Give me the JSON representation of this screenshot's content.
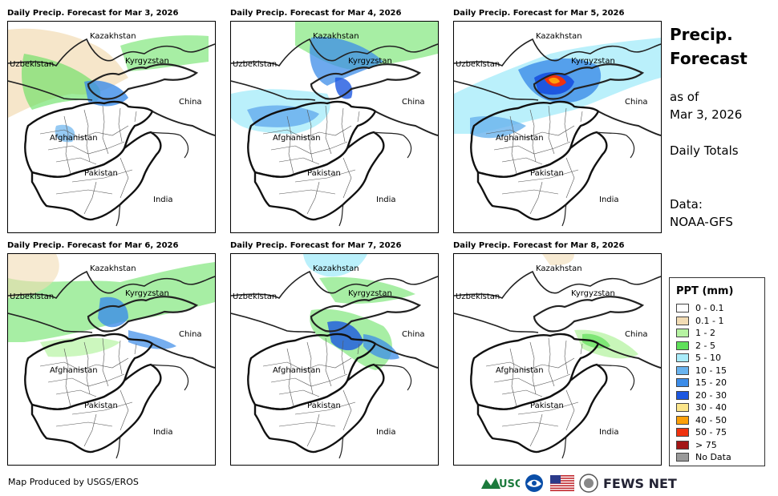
{
  "panels": [
    {
      "title": "Daily Precip. Forecast for Mar 3, 2026"
    },
    {
      "title": "Daily Precip. Forecast for Mar 4, 2026"
    },
    {
      "title": "Daily Precip. Forecast for Mar 5, 2026"
    },
    {
      "title": "Daily Precip. Forecast for Mar 6, 2026"
    },
    {
      "title": "Daily Precip. Forecast for Mar 7, 2026"
    },
    {
      "title": "Daily Precip. Forecast for Mar 8, 2026"
    }
  ],
  "map_labels": {
    "kazakhstan": "Kazakhstan",
    "uzbekistan": "Uzbekistan",
    "kyrgyzstan": "Kyrgyzstan",
    "china": "China",
    "afghanistan": "Afghanistan",
    "pakistan": "Pakistan",
    "india": "India"
  },
  "side": {
    "title_line1": "Precip.",
    "title_line2": "Forecast",
    "asof": "as of",
    "date": "Mar 3, 2026",
    "totals": "Daily Totals",
    "data_label": "Data:",
    "data_source": "NOAA-GFS"
  },
  "legend": {
    "title": "PPT (mm)",
    "items": [
      {
        "label": "0 - 0.1",
        "color": "#ffffff"
      },
      {
        "label": "0.1 - 1",
        "color": "#f2dcb4"
      },
      {
        "label": "1 - 2",
        "color": "#b6f3a2"
      },
      {
        "label": "2 - 5",
        "color": "#5fe05a"
      },
      {
        "label": "5 - 10",
        "color": "#a9ecfa"
      },
      {
        "label": "10 - 15",
        "color": "#69b3ee"
      },
      {
        "label": "15 - 20",
        "color": "#3c8ce8"
      },
      {
        "label": "20 - 30",
        "color": "#1d57e0"
      },
      {
        "label": "30 - 40",
        "color": "#fbe58a"
      },
      {
        "label": "40 - 50",
        "color": "#fca00a"
      },
      {
        "label": "50 - 75",
        "color": "#f0320e"
      },
      {
        "label": "> 75",
        "color": "#a31616"
      },
      {
        "label": "No Data",
        "color": "#999999"
      }
    ]
  },
  "footer": {
    "credit": "Map Produced by USGS/EROS",
    "usgs": "USGS",
    "fews": "FEWS NET"
  }
}
